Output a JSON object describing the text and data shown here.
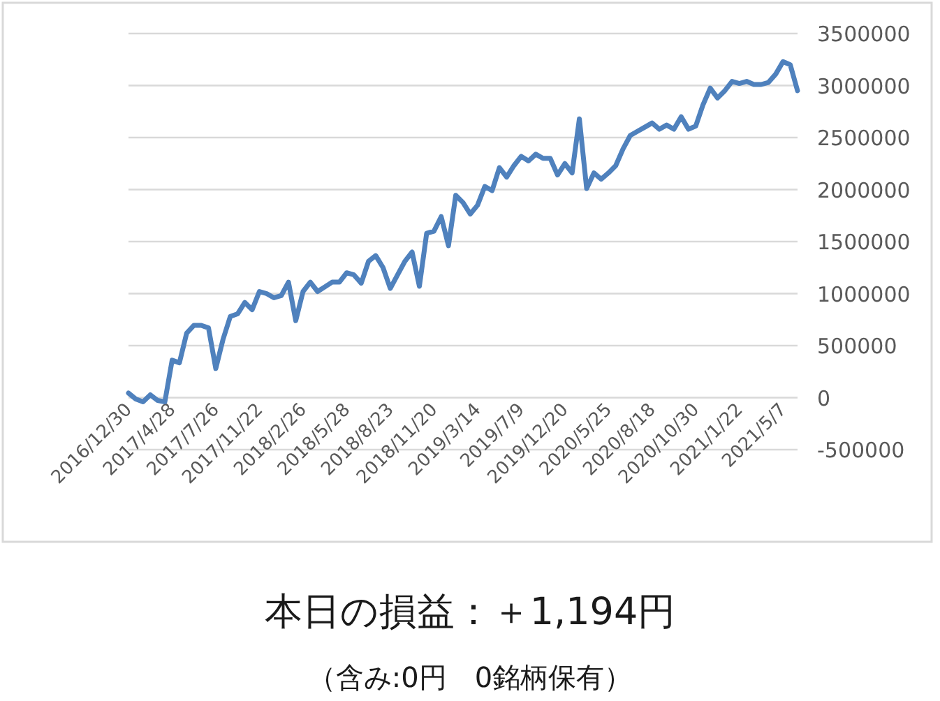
{
  "chart_data": {
    "type": "line",
    "categories": [
      "2016/12/30",
      null,
      null,
      null,
      null,
      null,
      "2017/4/28",
      null,
      null,
      null,
      null,
      null,
      "2017/7/26",
      null,
      null,
      null,
      null,
      null,
      "2017/11/22",
      null,
      null,
      null,
      null,
      null,
      "2018/2/26",
      null,
      null,
      null,
      null,
      null,
      "2018/5/28",
      null,
      null,
      null,
      null,
      null,
      "2018/8/23",
      null,
      null,
      null,
      null,
      null,
      "2018/11/20",
      null,
      null,
      null,
      null,
      null,
      "2019/3/14",
      null,
      null,
      null,
      null,
      null,
      "2019/7/9",
      null,
      null,
      null,
      null,
      null,
      "2019/12/20",
      null,
      null,
      null,
      null,
      null,
      "2020/5/25",
      null,
      null,
      null,
      null,
      null,
      "2020/8/18",
      null,
      null,
      null,
      null,
      null,
      "2020/10/30",
      null,
      null,
      null,
      null,
      null,
      "2021/1/22",
      null,
      null,
      null,
      null,
      null,
      "2021/5/7",
      null,
      null
    ],
    "values": [
      44000,
      -13000,
      -40000,
      27000,
      -27000,
      -40000,
      360000,
      335000,
      620000,
      695000,
      695000,
      670000,
      280000,
      560000,
      780000,
      805000,
      915000,
      845000,
      1020000,
      1000000,
      960000,
      980000,
      1110000,
      740000,
      1020000,
      1110000,
      1020000,
      1065000,
      1110000,
      1110000,
      1200000,
      1180000,
      1100000,
      1310000,
      1365000,
      1250000,
      1050000,
      1180000,
      1310000,
      1400000,
      1070000,
      1580000,
      1600000,
      1740000,
      1460000,
      1945000,
      1875000,
      1765000,
      1850000,
      2030000,
      1990000,
      2210000,
      2120000,
      2230000,
      2320000,
      2275000,
      2340000,
      2300000,
      2300000,
      2140000,
      2250000,
      2160000,
      2680000,
      2010000,
      2160000,
      2100000,
      2160000,
      2230000,
      2390000,
      2520000,
      2560000,
      2600000,
      2640000,
      2580000,
      2620000,
      2580000,
      2700000,
      2580000,
      2610000,
      2815000,
      2975000,
      2880000,
      2950000,
      3040000,
      3020000,
      3040000,
      3010000,
      3010000,
      3030000,
      3110000,
      3230000,
      3200000,
      2950000
    ],
    "color": "#4f81bd",
    "ylim": [
      -500000,
      3500000
    ],
    "yticks": [
      -500000,
      0,
      500000,
      1000000,
      1500000,
      2000000,
      2500000,
      3000000,
      3500000
    ],
    "grid": "y",
    "annotations": [
      "本日の損益：＋1,194円",
      "（含み:0円　0銘柄保有）"
    ]
  }
}
